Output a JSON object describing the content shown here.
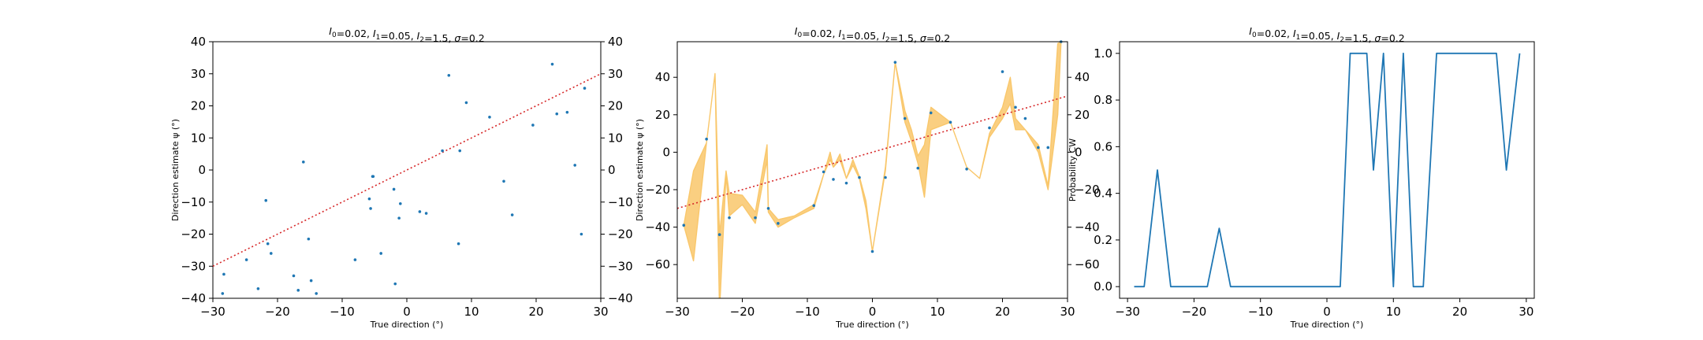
{
  "colors": {
    "points": "#1f77b4",
    "identity": "#d62728",
    "band": "#f9c76b",
    "line": "#1f77b4"
  },
  "chart_data": [
    {
      "type": "scatter",
      "title": "$I_0=0.02$, $I_1=0.05$, $I_2=1.5$, $\\sigma=0.2$",
      "title_parts": [
        "I",
        "0",
        "=0.02, ",
        "I",
        "1",
        "=0.05, ",
        "I",
        "2",
        "=1.5, ",
        "σ",
        "=0.2"
      ],
      "xlabel": "True direction (°)",
      "ylabel": "Direction estimate ψ (°)",
      "xlim": [
        -30,
        30
      ],
      "ylim": [
        -40,
        40
      ],
      "xticks": [
        -30,
        -20,
        -10,
        0,
        10,
        20,
        30
      ],
      "yticks": [
        -40,
        -30,
        -20,
        -10,
        0,
        10,
        20,
        30,
        40
      ],
      "twin_y": true,
      "grid": false,
      "reference_line": {
        "name": "identity",
        "x": [
          -30,
          30
        ],
        "y": [
          -30,
          30
        ],
        "style": "dotted"
      },
      "x": [
        -28.5,
        -28.3,
        -24.8,
        -23,
        -21.8,
        -21.5,
        -21,
        -17.5,
        -16.8,
        -16,
        -15.2,
        -14.8,
        -14,
        -8,
        -5.8,
        -5.6,
        -5.3,
        -5.2,
        -4,
        -2,
        -1.8,
        -1.2,
        -1,
        2,
        3,
        5.5,
        6.5,
        8,
        8.2,
        9.2,
        12.8,
        15,
        16.3,
        19.5,
        22.5,
        23.2,
        24.8,
        26,
        27,
        27.5
      ],
      "y": [
        -38.5,
        -32.5,
        -28,
        -37,
        -9.5,
        -23,
        -26,
        -33,
        -37.5,
        2.5,
        -21.5,
        -34.5,
        -38.5,
        -28,
        -9,
        -12,
        -2,
        -2,
        -26,
        -6,
        -35.5,
        -15,
        -10.5,
        -13,
        -13.5,
        6,
        29.5,
        -23,
        6,
        21,
        16.5,
        -3.5,
        -14,
        14,
        33,
        17.5,
        18,
        1.5,
        -20,
        25.5
      ]
    },
    {
      "type": "scatter",
      "title": "$I_0=0.02$, $I_1=0.05$, $I_2=1.5$, $\\sigma=0.2$",
      "title_parts": [
        "I",
        "0",
        "=0.02, ",
        "I",
        "1",
        "=0.05, ",
        "I",
        "2",
        "=1.5, ",
        "σ",
        "=0.2"
      ],
      "xlabel": "True direction (°)",
      "ylabel": "Direction estimate ψ (°)",
      "xlim": [
        -30,
        30
      ],
      "yticks_left": [
        -60,
        -40,
        -20,
        0,
        20,
        40
      ],
      "yticks_right": [
        -60,
        -40,
        -20,
        0,
        20,
        40
      ],
      "ylim": [
        -78,
        59
      ],
      "twin_y": true,
      "grid": false,
      "reference_line": {
        "name": "identity",
        "x": [
          -30,
          30
        ],
        "y": [
          -30,
          30
        ],
        "style": "dotted"
      },
      "points": {
        "x": [
          -29,
          -25.5,
          -23.5,
          -22,
          -18,
          -16,
          -14.5,
          -9,
          -7.5,
          -6,
          -4,
          -2,
          0,
          2,
          3.5,
          5,
          7,
          9,
          12,
          14.5,
          18,
          20,
          22,
          23.5,
          25.5,
          27,
          29
        ],
        "y": [
          -39,
          7,
          -44,
          -35,
          -35,
          -30,
          -38,
          -28.5,
          -10.5,
          -14.5,
          -16.5,
          -13.5,
          -53,
          -13.5,
          48,
          18,
          -8.5,
          21,
          16,
          -9,
          13,
          43,
          24,
          18,
          2.5,
          2.5,
          59
        ]
      },
      "band": {
        "x": [
          -29,
          -27.5,
          -25.5,
          -24.2,
          -23.5,
          -22.5,
          -22,
          -20,
          -18,
          -16.2,
          -16,
          -14.5,
          -12,
          -9,
          -7.5,
          -6.5,
          -6,
          -5,
          -4,
          -3,
          -2,
          -1,
          0,
          2,
          3.5,
          5,
          6,
          7,
          8,
          9,
          12,
          14.5,
          16.5,
          18,
          20,
          21.2,
          22,
          23.5,
          25.5,
          27,
          28.5,
          29
        ],
        "upper": [
          -39,
          -10,
          5,
          42,
          -44,
          -10,
          -22,
          -23,
          -32,
          4,
          -30,
          -36,
          -34,
          -28,
          -12,
          0,
          -8,
          -1,
          -14,
          -4,
          -13,
          -26,
          -53,
          -8,
          48,
          22,
          12,
          -2,
          4,
          24,
          16,
          -8,
          -14,
          10,
          24,
          40,
          18,
          12,
          4,
          -18,
          58,
          59
        ],
        "lower": [
          -39,
          -58,
          5,
          42,
          -85,
          -12,
          -34,
          -28,
          -38,
          -4,
          -32,
          -40,
          -35,
          -30,
          -12,
          -4,
          -8,
          -4,
          -14,
          -7,
          -14,
          -30,
          -53,
          -10,
          48,
          16,
          6,
          -6,
          -24,
          12,
          16,
          -8,
          -14,
          8,
          18,
          26,
          12,
          12,
          0,
          -20,
          20,
          59
        ]
      }
    },
    {
      "type": "line",
      "title": "$I_0=0.02$, $I_1=0.05$, $I_2=1.5$, $\\sigma=0.2$",
      "title_parts": [
        "I",
        "0",
        "=0.02, ",
        "I",
        "1",
        "=0.05, ",
        "I",
        "2",
        "=1.5, ",
        "σ",
        "=0.2"
      ],
      "xlabel": "True direction (°)",
      "ylabel": "Probability CW",
      "xlim": [
        -31.2,
        31.2
      ],
      "ylim": [
        -0.05,
        1.05
      ],
      "xticks": [
        -30,
        -20,
        -10,
        0,
        10,
        20,
        30
      ],
      "yticks": [
        0.0,
        0.2,
        0.4,
        0.6,
        0.8,
        1.0
      ],
      "ytick_labels": [
        "0.0",
        "0.2",
        "0.4",
        "0.6",
        "0.8",
        "1.0"
      ],
      "grid": false,
      "x": [
        -29,
        -27.5,
        -25.5,
        -23.5,
        -18,
        -16.2,
        -14.5,
        2,
        3.5,
        5,
        6,
        7,
        8.5,
        10,
        11.5,
        13,
        14.5,
        16.5,
        18,
        25.5,
        27,
        29
      ],
      "y": [
        0,
        0,
        0.5,
        0,
        0,
        0.25,
        0,
        0,
        1,
        1,
        1,
        0.5,
        1,
        0,
        1,
        0,
        0,
        1,
        1,
        1,
        0.5,
        1
      ]
    }
  ]
}
